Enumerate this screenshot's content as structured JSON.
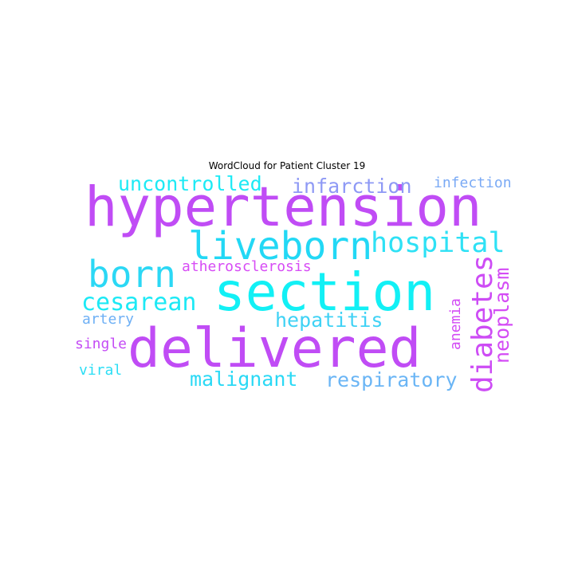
{
  "chart_data": {
    "type": "wordcloud",
    "title": "WordCloud for Patient Cluster 19",
    "words": [
      {
        "text": "hypertension",
        "color": "#c04cf5"
      },
      {
        "text": "section",
        "color": "#12f0f5"
      },
      {
        "text": "delivered",
        "color": "#c04cf5"
      },
      {
        "text": "liveborn",
        "color": "#22d8f5"
      },
      {
        "text": "born",
        "color": "#2bd8f5"
      },
      {
        "text": "hospital",
        "color": "#2ee1f5"
      },
      {
        "text": "diabetes",
        "color": "#cd4cf5"
      },
      {
        "text": "cesarean",
        "color": "#1ce9f5"
      },
      {
        "text": "uncontrolled",
        "color": "#1deaf5"
      },
      {
        "text": "infarction",
        "color": "#8e99f5"
      },
      {
        "text": "neoplasm",
        "color": "#d44cf5"
      },
      {
        "text": "respiratory",
        "color": "#6ab5f5"
      },
      {
        "text": "malignant",
        "color": "#2ad9f5"
      },
      {
        "text": "hepatitis",
        "color": "#3fd2f5"
      },
      {
        "text": "atherosclerosis",
        "color": "#d74cf5"
      },
      {
        "text": "infection",
        "color": "#7aaaf5"
      },
      {
        "text": "anemia",
        "color": "#d34cf5"
      },
      {
        "text": "artery",
        "color": "#6eb0f5"
      },
      {
        "text": "single",
        "color": "#c44cf5"
      },
      {
        "text": "viral",
        "color": "#2bdef5"
      }
    ]
  }
}
